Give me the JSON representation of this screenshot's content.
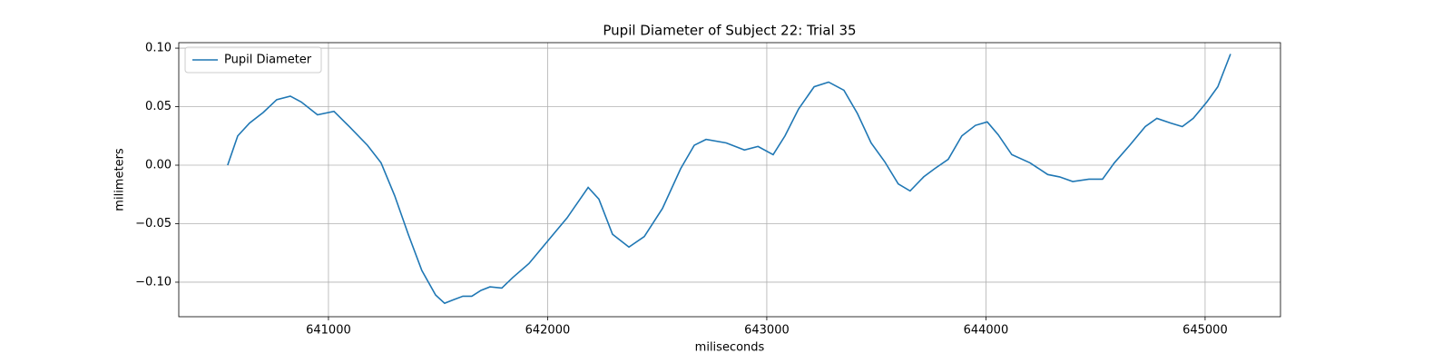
{
  "chart_data": {
    "type": "line",
    "title": "Pupil Diameter of Subject 22: Trial 35",
    "x_label": "miliseconds",
    "y_label": "milimeters",
    "x": [
      640540,
      640586,
      640640,
      640702,
      640764,
      640826,
      640876,
      640950,
      641025,
      641095,
      641178,
      641240,
      641302,
      641364,
      641426,
      641489,
      641530,
      641571,
      641613,
      641654,
      641696,
      641737,
      641791,
      641841,
      641915,
      641986,
      642089,
      642185,
      642234,
      642296,
      642371,
      642441,
      642524,
      642607,
      642669,
      642723,
      642815,
      642898,
      642960,
      643029,
      643083,
      643145,
      643216,
      643282,
      643352,
      643414,
      643476,
      643538,
      643600,
      643654,
      643716,
      643766,
      643828,
      643890,
      643952,
      644006,
      644056,
      644118,
      644201,
      644282,
      644336,
      644396,
      644470,
      644532,
      644586,
      644656,
      644727,
      644780,
      644843,
      644896,
      644946,
      645008,
      645058,
      645116
    ],
    "series": [
      {
        "name": "Pupil Diameter",
        "color": "#1f77b4",
        "values": [
          0.0,
          0.025,
          0.036,
          0.045,
          0.056,
          0.059,
          0.054,
          0.043,
          0.046,
          0.033,
          0.017,
          0.002,
          -0.026,
          -0.059,
          -0.09,
          -0.111,
          -0.118,
          -0.115,
          -0.112,
          -0.112,
          -0.107,
          -0.104,
          -0.105,
          -0.096,
          -0.084,
          -0.068,
          -0.045,
          -0.019,
          -0.029,
          -0.059,
          -0.07,
          -0.061,
          -0.037,
          -0.003,
          0.017,
          0.022,
          0.019,
          0.013,
          0.016,
          0.009,
          0.025,
          0.048,
          0.067,
          0.071,
          0.064,
          0.044,
          0.019,
          0.003,
          -0.016,
          -0.022,
          -0.01,
          -0.003,
          0.005,
          0.025,
          0.034,
          0.037,
          0.026,
          0.009,
          0.002,
          -0.008,
          -0.01,
          -0.014,
          -0.012,
          -0.012,
          0.002,
          0.017,
          0.033,
          0.04,
          0.036,
          0.033,
          0.04,
          0.054,
          0.067,
          0.095
        ]
      }
    ],
    "xlim": [
      640317,
      645344
    ],
    "xticks": [
      641000,
      642000,
      643000,
      644000,
      645000
    ],
    "ylim": [
      -0.1295,
      0.1047
    ],
    "yticks": [
      {
        "value": -0.1,
        "label": "−0.10"
      },
      {
        "value": -0.05,
        "label": "−0.05"
      },
      {
        "value": 0,
        "label": "0.00"
      },
      {
        "value": 0.05,
        "label": "0.05"
      },
      {
        "value": 0.1,
        "label": "0.10"
      }
    ],
    "grid": true,
    "legend": "upper left"
  }
}
